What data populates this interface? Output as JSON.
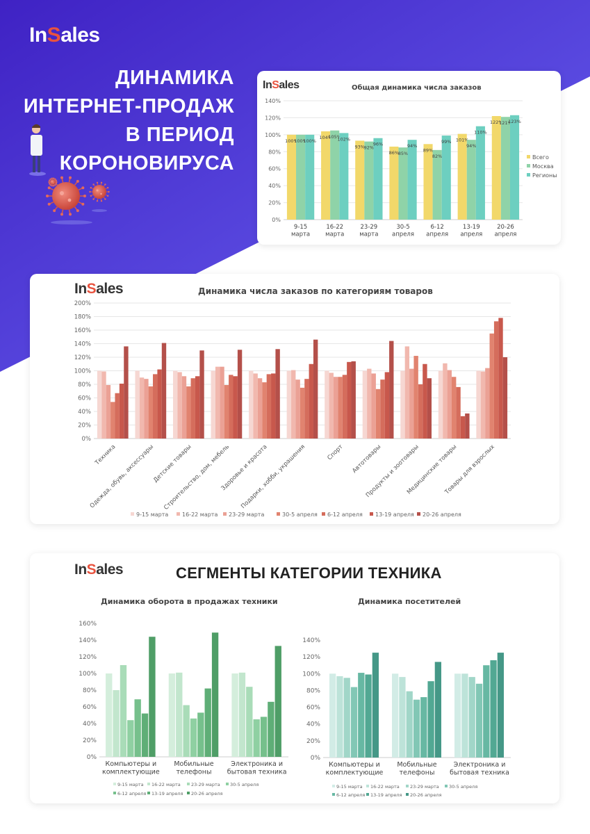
{
  "brand": {
    "logo_prefix": "In",
    "logo_accent": "S",
    "logo_suffix": "ales"
  },
  "headline": [
    "ДИНАМИКА",
    "ИНТЕРНЕТ-ПРОДАЖ",
    "В ПЕРИОД",
    "КОРОНОВИРУСА"
  ],
  "colors": {
    "bg_purple": "#4a2fd0",
    "bg_purple_light": "#5f55ee",
    "accent_red": "#e8533f"
  },
  "section3_title": "СЕГМЕНТЫ КАТЕГОРИИ ТЕХНИКА",
  "chart_data": [
    {
      "type": "bar",
      "title": "Общая динамика числа заказов",
      "categories": [
        [
          "9-15",
          "марта"
        ],
        [
          "16-22",
          "марта"
        ],
        [
          "23-29",
          "марта"
        ],
        [
          "30-5",
          "апреля"
        ],
        [
          "6-12",
          "апреля"
        ],
        [
          "13-19",
          "апреля"
        ],
        [
          "20-26",
          "апреля"
        ]
      ],
      "ylim": [
        0,
        140
      ],
      "yticks": [
        "0%",
        "20%",
        "40%",
        "60%",
        "80%",
        "100%",
        "120%",
        "140%"
      ],
      "series": [
        {
          "name": "Всего",
          "color": "#f2d86a",
          "values": [
            100,
            104,
            93,
            86,
            89,
            101,
            122
          ],
          "labels": [
            "100%",
            "104%",
            "93%",
            "86%",
            "89%",
            "101%",
            "122%"
          ]
        },
        {
          "name": "Москва",
          "color": "#8fd3a8",
          "values": [
            100,
            105,
            92,
            85,
            82,
            94,
            121
          ],
          "labels": [
            "100%",
            "105%",
            "92%",
            "85%",
            "82%",
            "94%",
            "121%"
          ]
        },
        {
          "name": "Регионы",
          "color": "#6dcfc0",
          "values": [
            100,
            102,
            96,
            94,
            99,
            110,
            123
          ],
          "labels": [
            "100%",
            "102%",
            "96%",
            "94%",
            "99%",
            "110%",
            "123%"
          ]
        }
      ],
      "legend": "right",
      "grid": true
    },
    {
      "type": "bar",
      "title": "Динамика числа заказов по категориям товаров",
      "categories": [
        "Техника",
        "Одежда, обувь, аксессуары",
        "Детские товары",
        "Строительство, дом, мебель",
        "Здоровье и красота",
        "Подарки, хобби, украшения",
        "Спорт",
        "Автотовары",
        "Продукты и зоотовары",
        "Медицинские товары",
        "Товары для взрослых"
      ],
      "ylim": [
        0,
        200
      ],
      "yticks": [
        "0%",
        "20%",
        "40%",
        "60%",
        "80%",
        "100%",
        "120%",
        "140%",
        "160%",
        "180%",
        "200%"
      ],
      "series": [
        {
          "name": "9-15 марта",
          "color": "#f6d7d2",
          "values": [
            100,
            100,
            100,
            100,
            100,
            100,
            100,
            100,
            100,
            100,
            100
          ]
        },
        {
          "name": "16-22 марта",
          "color": "#f1b8ae",
          "values": [
            99,
            90,
            98,
            106,
            96,
            101,
            97,
            103,
            136,
            111,
            99
          ]
        },
        {
          "name": "23-29 марта",
          "color": "#eba195",
          "values": [
            79,
            88,
            92,
            106,
            89,
            87,
            91,
            96,
            103,
            101,
            104
          ]
        },
        {
          "name": "30-5 апреля",
          "color": "#e1836f",
          "values": [
            54,
            77,
            77,
            79,
            83,
            75,
            91,
            73,
            122,
            91,
            155
          ]
        },
        {
          "name": "6-12 апреля",
          "color": "#d56d5c",
          "values": [
            67,
            95,
            89,
            94,
            95,
            88,
            94,
            87,
            80,
            76,
            173
          ]
        },
        {
          "name": "13-19 апреля",
          "color": "#c8584c",
          "values": [
            81,
            102,
            92,
            92,
            96,
            110,
            113,
            98,
            110,
            33,
            178
          ]
        },
        {
          "name": "20-26 апреля",
          "color": "#b4504a",
          "values": [
            136,
            141,
            130,
            131,
            132,
            146,
            114,
            144,
            89,
            37,
            120
          ]
        }
      ],
      "legend": "bottom",
      "grid": true
    },
    {
      "type": "bar",
      "title": "Динамика оборота в продажах техники",
      "categories": [
        [
          "Компьютеры и",
          "комплектующие"
        ],
        [
          "Мобильные",
          "телефоны"
        ],
        [
          "Электроника и",
          "бытовая техника"
        ]
      ],
      "ylim": [
        0,
        160
      ],
      "yticks": [
        "0%",
        "20%",
        "40%",
        "60%",
        "80%",
        "100%",
        "120%",
        "140%",
        "160%"
      ],
      "series": [
        {
          "name": "9-15 марта",
          "color": "#d4eedc",
          "values": [
            100,
            100,
            100
          ]
        },
        {
          "name": "16-22 марта",
          "color": "#c2e6cd",
          "values": [
            80,
            101,
            101
          ]
        },
        {
          "name": "23-29 марта",
          "color": "#a9dcb8",
          "values": [
            110,
            62,
            84
          ]
        },
        {
          "name": "30-5 апреля",
          "color": "#8fd0a2",
          "values": [
            44,
            46,
            45
          ]
        },
        {
          "name": "6-12 апреля",
          "color": "#76c08c",
          "values": [
            69,
            53,
            48
          ]
        },
        {
          "name": "13-19 апреля",
          "color": "#5fae77",
          "values": [
            52,
            82,
            66
          ]
        },
        {
          "name": "20-26 апреля",
          "color": "#4f9e67",
          "values": [
            144,
            149,
            133
          ]
        }
      ],
      "legend": "bottom",
      "grid": false
    },
    {
      "type": "bar",
      "title": "Динамика посетителей",
      "categories": [
        [
          "Компьютеры и",
          "комплектующие"
        ],
        [
          "Мобильные",
          "телефоны"
        ],
        [
          "Электроника и",
          "бытовая техника"
        ]
      ],
      "ylim": [
        0,
        140
      ],
      "yticks": [
        "0%",
        "20%",
        "40%",
        "60%",
        "80%",
        "100%",
        "120%",
        "140%"
      ],
      "series": [
        {
          "name": "9-15 марта",
          "color": "#d2ece6",
          "values": [
            100,
            100,
            100
          ]
        },
        {
          "name": "16-22 марта",
          "color": "#bde3d9",
          "values": [
            97,
            96,
            100
          ]
        },
        {
          "name": "23-29 марта",
          "color": "#a1d6c8",
          "values": [
            95,
            79,
            96
          ]
        },
        {
          "name": "30-5 апреля",
          "color": "#82c7b5",
          "values": [
            84,
            69,
            88
          ]
        },
        {
          "name": "6-12 апреля",
          "color": "#67b8a3",
          "values": [
            101,
            72,
            110
          ]
        },
        {
          "name": "13-19 апреля",
          "color": "#52a893",
          "values": [
            99,
            91,
            116
          ]
        },
        {
          "name": "20-26 апреля",
          "color": "#459887",
          "values": [
            125,
            114,
            125
          ]
        }
      ],
      "legend": "bottom",
      "grid": false
    }
  ]
}
